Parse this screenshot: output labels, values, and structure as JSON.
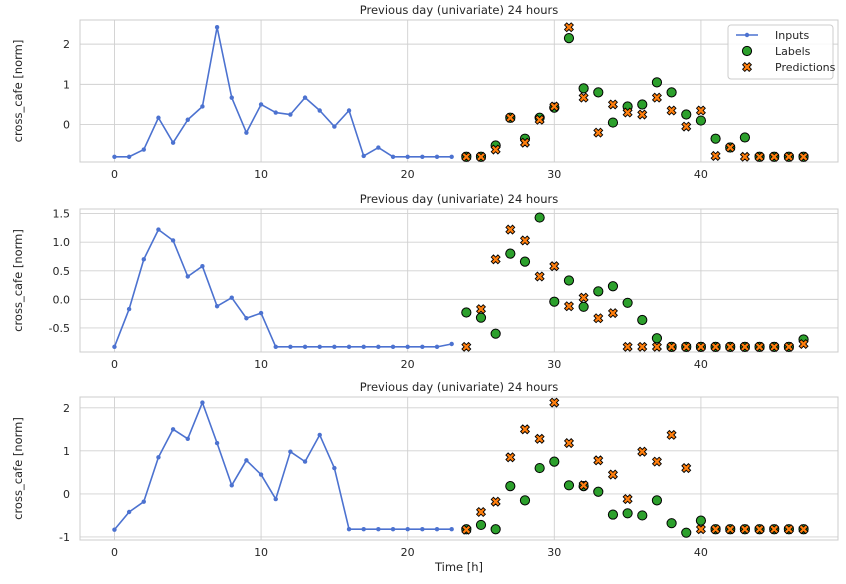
{
  "chart_data": [
    {
      "type": "line",
      "title": "Previous day (univariate) 24 hours",
      "xlabel": "",
      "ylabel": "cross_cafe [norm]",
      "xlim": [
        -2.35,
        49.35
      ],
      "ylim": [
        -0.93,
        2.6
      ],
      "xticks": [
        0,
        10,
        20,
        30,
        40
      ],
      "yticks": [
        0,
        1,
        2
      ],
      "grid": true,
      "legend": {
        "placement": "top-right",
        "entries": [
          "Inputs",
          "Labels",
          "Predictions"
        ]
      },
      "series": [
        {
          "name": "Inputs",
          "kind": "line-markers",
          "x": [
            0,
            1,
            2,
            3,
            4,
            5,
            6,
            7,
            8,
            9,
            10,
            11,
            12,
            13,
            14,
            15,
            16,
            17,
            18,
            19,
            20,
            21,
            22,
            23
          ],
          "values": [
            -0.8,
            -0.8,
            -0.62,
            0.17,
            -0.45,
            0.12,
            0.45,
            2.42,
            0.67,
            -0.2,
            0.5,
            0.3,
            0.25,
            0.67,
            0.35,
            -0.05,
            0.35,
            -0.78,
            -0.57,
            -0.8,
            -0.8,
            -0.8,
            -0.8,
            -0.8
          ]
        },
        {
          "name": "Labels",
          "kind": "scatter-circle",
          "x": [
            24,
            25,
            26,
            27,
            28,
            29,
            30,
            31,
            32,
            33,
            34,
            35,
            36,
            37,
            38,
            39,
            40,
            41,
            42,
            43,
            44,
            45,
            46,
            47
          ],
          "values": [
            -0.8,
            -0.8,
            -0.52,
            0.17,
            -0.35,
            0.17,
            0.42,
            2.15,
            0.9,
            0.8,
            0.05,
            0.45,
            0.5,
            1.05,
            0.8,
            0.25,
            0.1,
            -0.35,
            -0.57,
            -0.32,
            -0.8,
            -0.8,
            -0.8,
            -0.8
          ]
        },
        {
          "name": "Predictions",
          "kind": "scatter-x",
          "x": [
            24,
            25,
            26,
            27,
            28,
            29,
            30,
            31,
            32,
            33,
            34,
            35,
            36,
            37,
            38,
            39,
            40,
            41,
            42,
            43,
            44,
            45,
            46,
            47
          ],
          "values": [
            -0.8,
            -0.8,
            -0.62,
            0.17,
            -0.45,
            0.12,
            0.45,
            2.42,
            0.67,
            -0.2,
            0.5,
            0.3,
            0.25,
            0.67,
            0.35,
            -0.05,
            0.35,
            -0.78,
            -0.57,
            -0.8,
            -0.8,
            -0.8,
            -0.8,
            -0.8
          ]
        }
      ]
    },
    {
      "type": "line",
      "title": "Previous day (univariate) 24 hours",
      "xlabel": "",
      "ylabel": "cross_cafe [norm]",
      "xlim": [
        -2.35,
        49.35
      ],
      "ylim": [
        -0.92,
        1.58
      ],
      "xticks": [
        0,
        10,
        20,
        30,
        40
      ],
      "yticks": [
        -0.5,
        0.0,
        0.5,
        1.0,
        1.5
      ],
      "ytick_labels": [
        "-0.5",
        "0.0",
        "0.5",
        "1.0",
        "1.5"
      ],
      "grid": true,
      "series": [
        {
          "name": "Inputs",
          "kind": "line-markers",
          "x": [
            0,
            1,
            2,
            3,
            4,
            5,
            6,
            7,
            8,
            9,
            10,
            11,
            12,
            13,
            14,
            15,
            16,
            17,
            18,
            19,
            20,
            21,
            22,
            23
          ],
          "values": [
            -0.83,
            -0.17,
            0.7,
            1.22,
            1.03,
            0.4,
            0.58,
            -0.12,
            0.03,
            -0.33,
            -0.24,
            -0.83,
            -0.83,
            -0.83,
            -0.83,
            -0.83,
            -0.83,
            -0.83,
            -0.83,
            -0.83,
            -0.83,
            -0.83,
            -0.83,
            -0.78
          ]
        },
        {
          "name": "Labels",
          "kind": "scatter-circle",
          "x": [
            24,
            25,
            26,
            27,
            28,
            29,
            30,
            31,
            32,
            33,
            34,
            35,
            36,
            37,
            38,
            39,
            40,
            41,
            42,
            43,
            44,
            45,
            46,
            47
          ],
          "values": [
            -0.23,
            -0.32,
            -0.6,
            0.8,
            0.66,
            1.43,
            -0.04,
            0.33,
            -0.13,
            0.14,
            0.23,
            -0.06,
            -0.36,
            -0.68,
            -0.83,
            -0.83,
            -0.83,
            -0.83,
            -0.83,
            -0.83,
            -0.83,
            -0.83,
            -0.83,
            -0.7
          ]
        },
        {
          "name": "Predictions",
          "kind": "scatter-x",
          "x": [
            24,
            25,
            26,
            27,
            28,
            29,
            30,
            31,
            32,
            33,
            34,
            35,
            36,
            37,
            38,
            39,
            40,
            41,
            42,
            43,
            44,
            45,
            46,
            47
          ],
          "values": [
            -0.83,
            -0.17,
            0.7,
            1.22,
            1.03,
            0.4,
            0.58,
            -0.12,
            0.03,
            -0.33,
            -0.24,
            -0.83,
            -0.83,
            -0.83,
            -0.83,
            -0.83,
            -0.83,
            -0.83,
            -0.83,
            -0.83,
            -0.83,
            -0.83,
            -0.83,
            -0.78
          ]
        }
      ]
    },
    {
      "type": "line",
      "title": "Previous day (univariate) 24 hours",
      "xlabel": "Time [h]",
      "ylabel": "cross_cafe [norm]",
      "xlim": [
        -2.35,
        49.35
      ],
      "ylim": [
        -1.07,
        2.25
      ],
      "xticks": [
        0,
        10,
        20,
        30,
        40
      ],
      "yticks": [
        -1,
        0,
        1,
        2
      ],
      "grid": true,
      "series": [
        {
          "name": "Inputs",
          "kind": "line-markers",
          "x": [
            0,
            1,
            2,
            3,
            4,
            5,
            6,
            7,
            8,
            9,
            10,
            11,
            12,
            13,
            14,
            15,
            16,
            17,
            18,
            19,
            20,
            21,
            22,
            23
          ],
          "values": [
            -0.83,
            -0.42,
            -0.18,
            0.85,
            1.5,
            1.28,
            2.12,
            1.18,
            0.2,
            0.78,
            0.45,
            -0.12,
            0.98,
            0.75,
            1.37,
            0.6,
            -0.82,
            -0.82,
            -0.82,
            -0.82,
            -0.82,
            -0.82,
            -0.82,
            -0.82
          ]
        },
        {
          "name": "Labels",
          "kind": "scatter-circle",
          "x": [
            24,
            25,
            26,
            27,
            28,
            29,
            30,
            31,
            32,
            33,
            34,
            35,
            36,
            37,
            38,
            39,
            40,
            41,
            42,
            43,
            44,
            45,
            46,
            47
          ],
          "values": [
            -0.82,
            -0.72,
            -0.82,
            0.18,
            -0.15,
            0.6,
            0.75,
            0.2,
            0.18,
            0.05,
            -0.48,
            -0.45,
            -0.5,
            -0.15,
            -0.68,
            -0.9,
            -0.62,
            -0.82,
            -0.82,
            -0.82,
            -0.82,
            -0.82,
            -0.82,
            -0.82
          ]
        },
        {
          "name": "Predictions",
          "kind": "scatter-x",
          "x": [
            24,
            25,
            26,
            27,
            28,
            29,
            30,
            31,
            32,
            33,
            34,
            35,
            36,
            37,
            38,
            39,
            40,
            41,
            42,
            43,
            44,
            45,
            46,
            47
          ],
          "values": [
            -0.83,
            -0.42,
            -0.18,
            0.85,
            1.5,
            1.28,
            2.12,
            1.18,
            0.2,
            0.78,
            0.45,
            -0.12,
            0.98,
            0.75,
            1.37,
            0.6,
            -0.82,
            -0.82,
            -0.82,
            -0.82,
            -0.82,
            -0.82,
            -0.82,
            -0.82
          ]
        }
      ]
    }
  ],
  "colors": {
    "inputs": "#4c72d0",
    "labels": "#2ca02c",
    "predictions": "#ff7f0e",
    "grid": "#d0d0d0",
    "axes_edge": "#cccccc",
    "text": "#262626",
    "marker_edge": "#000000"
  }
}
